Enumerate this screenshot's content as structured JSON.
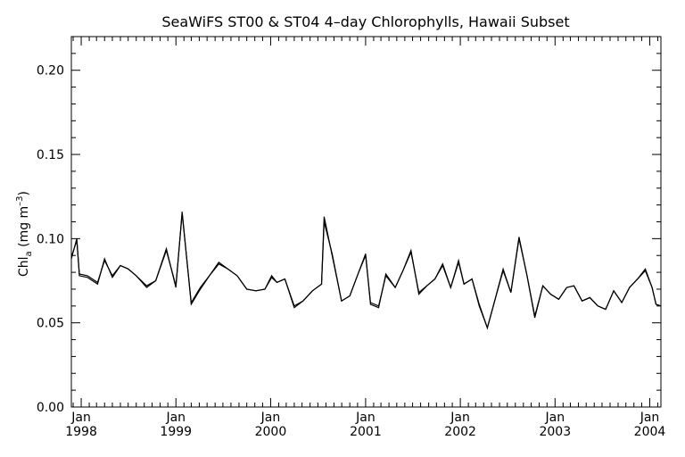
{
  "chart_data": {
    "type": "line",
    "title": "SeaWiFS ST00 & ST04 4–day Chlorophylls, Hawaii Subset",
    "xlabel": "",
    "ylabel_main": "Chl",
    "ylabel_sub": "a",
    "ylabel_unit_open": " (mg m",
    "ylabel_unit_sup": "–3",
    "ylabel_unit_close": ")",
    "ylim": [
      0.0,
      0.22
    ],
    "xlim": [
      "1997-11-24",
      "2004-02-13"
    ],
    "y_ticks": [
      {
        "value": 0.0,
        "label": "0.00"
      },
      {
        "value": 0.05,
        "label": "0.05"
      },
      {
        "value": 0.1,
        "label": "0.10"
      },
      {
        "value": 0.15,
        "label": "0.15"
      },
      {
        "value": 0.2,
        "label": "0.20"
      }
    ],
    "x_ticks": [
      {
        "date": "1998-01-01",
        "month": "Jan",
        "year": "1998"
      },
      {
        "date": "1999-01-01",
        "month": "Jan",
        "year": "1999"
      },
      {
        "date": "2000-01-01",
        "month": "Jan",
        "year": "2000"
      },
      {
        "date": "2001-01-01",
        "month": "Jan",
        "year": "2001"
      },
      {
        "date": "2002-01-01",
        "month": "Jan",
        "year": "2002"
      },
      {
        "date": "2003-01-01",
        "month": "Jan",
        "year": "2003"
      },
      {
        "date": "2004-01-01",
        "month": "Jan",
        "year": "2004"
      }
    ],
    "grid": false,
    "series": [
      {
        "x": [
          "1997-11-24",
          "1997-12-15",
          "1997-12-25",
          "1998-01-25",
          "1998-03-05",
          "1998-04-01",
          "1998-05-01",
          "1998-06-01",
          "1998-07-01",
          "1998-08-01",
          "1998-09-10",
          "1998-10-15",
          "1998-11-25",
          "1999-01-01",
          "1999-01-25",
          "1999-03-01",
          "1999-04-05",
          "1999-05-10",
          "1999-06-15",
          "1999-07-20",
          "1999-08-25",
          "1999-10-01",
          "1999-11-05",
          "1999-12-10",
          "2000-01-05",
          "2000-01-25",
          "2000-02-25",
          "2000-04-01",
          "2000-05-05",
          "2000-06-10",
          "2000-07-15",
          "2000-07-25",
          "2000-08-25",
          "2000-09-30",
          "2000-11-01",
          "2000-12-05",
          "2001-01-01",
          "2001-01-20",
          "2001-02-20",
          "2001-03-20",
          "2001-04-25",
          "2001-05-25",
          "2001-06-25",
          "2001-07-25",
          "2001-08-25",
          "2001-09-25",
          "2001-10-25",
          "2001-11-25",
          "2001-12-25",
          "2002-01-15",
          "2002-02-15",
          "2002-03-15",
          "2002-04-15",
          "2002-05-15",
          "2002-06-15",
          "2002-07-15",
          "2002-08-15",
          "2002-09-15",
          "2002-10-15",
          "2002-11-15",
          "2002-12-15",
          "2003-01-15",
          "2003-02-15",
          "2003-03-15",
          "2003-04-15",
          "2003-05-15",
          "2003-06-15",
          "2003-07-15",
          "2003-08-15",
          "2003-09-15",
          "2003-10-15",
          "2003-11-15",
          "2003-12-15",
          "2004-01-10",
          "2004-01-25",
          "2004-02-13"
        ],
        "values": [
          0.088,
          0.1,
          0.078,
          0.077,
          0.073,
          0.088,
          0.077,
          0.084,
          0.082,
          0.078,
          0.071,
          0.075,
          0.094,
          0.071,
          0.116,
          0.061,
          0.07,
          0.078,
          0.085,
          0.082,
          0.078,
          0.07,
          0.069,
          0.07,
          0.078,
          0.074,
          0.076,
          0.059,
          0.063,
          0.069,
          0.073,
          0.113,
          0.09,
          0.063,
          0.066,
          0.08,
          0.091,
          0.061,
          0.059,
          0.079,
          0.071,
          0.081,
          0.093,
          0.067,
          0.072,
          0.076,
          0.085,
          0.071,
          0.087,
          0.073,
          0.076,
          0.06,
          0.047,
          0.064,
          0.082,
          0.068,
          0.101,
          0.078,
          0.053,
          0.072,
          0.067,
          0.064,
          0.071,
          0.072,
          0.063,
          0.065,
          0.06,
          0.058,
          0.069,
          0.062,
          0.071,
          0.076,
          0.082,
          0.071,
          0.061,
          0.06
        ]
      },
      {
        "x": [
          "1997-11-24",
          "1997-12-15",
          "1997-12-25",
          "1998-01-25",
          "1998-03-05",
          "1998-04-01",
          "1998-05-01",
          "1998-06-01",
          "1998-07-01",
          "1998-08-01",
          "1998-09-10",
          "1998-10-15",
          "1998-11-25",
          "1999-01-01",
          "1999-01-25",
          "1999-03-01",
          "1999-04-05",
          "1999-05-10",
          "1999-06-15",
          "1999-07-20",
          "1999-08-25",
          "1999-10-01",
          "1999-11-05",
          "1999-12-10",
          "2000-01-05",
          "2000-01-25",
          "2000-02-25",
          "2000-04-01",
          "2000-05-05",
          "2000-06-10",
          "2000-07-15",
          "2000-07-25",
          "2000-08-25",
          "2000-09-30",
          "2000-11-01",
          "2000-12-05",
          "2001-01-01",
          "2001-01-20",
          "2001-02-20",
          "2001-03-20",
          "2001-04-25",
          "2001-05-25",
          "2001-06-25",
          "2001-07-25",
          "2001-08-25",
          "2001-09-25",
          "2001-10-25",
          "2001-11-25",
          "2001-12-25",
          "2002-01-15",
          "2002-02-15",
          "2002-03-15",
          "2002-04-15",
          "2002-05-15",
          "2002-06-15",
          "2002-07-15",
          "2002-08-15",
          "2002-09-15",
          "2002-10-15",
          "2002-11-15",
          "2002-12-15",
          "2003-01-15",
          "2003-02-15",
          "2003-03-15",
          "2003-04-15",
          "2003-05-15",
          "2003-06-15",
          "2003-07-15",
          "2003-08-15",
          "2003-09-15",
          "2003-10-15",
          "2003-11-15",
          "2003-12-15",
          "2004-01-10",
          "2004-01-25",
          "2004-02-13"
        ],
        "values": [
          0.089,
          0.099,
          0.079,
          0.078,
          0.074,
          0.087,
          0.078,
          0.084,
          0.082,
          0.078,
          0.072,
          0.075,
          0.093,
          0.072,
          0.115,
          0.062,
          0.071,
          0.078,
          0.086,
          0.082,
          0.078,
          0.07,
          0.069,
          0.07,
          0.077,
          0.074,
          0.076,
          0.06,
          0.063,
          0.069,
          0.073,
          0.11,
          0.091,
          0.063,
          0.066,
          0.08,
          0.09,
          0.062,
          0.06,
          0.078,
          0.071,
          0.081,
          0.092,
          0.068,
          0.072,
          0.076,
          0.084,
          0.071,
          0.086,
          0.073,
          0.076,
          0.061,
          0.047,
          0.064,
          0.081,
          0.068,
          0.1,
          0.078,
          0.054,
          0.072,
          0.067,
          0.064,
          0.071,
          0.072,
          0.063,
          0.065,
          0.06,
          0.058,
          0.069,
          0.062,
          0.071,
          0.076,
          0.081,
          0.071,
          0.061,
          0.06
        ]
      }
    ]
  }
}
